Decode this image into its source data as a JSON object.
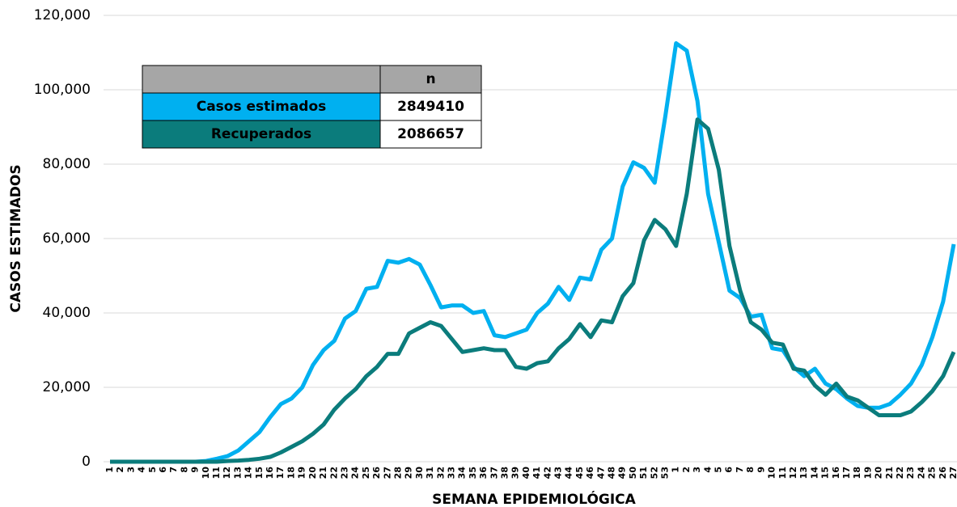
{
  "chart_data": {
    "type": "line",
    "x_label": "SEMANA EPIDEMIOLÓGICA",
    "y_label": "CASOS ESTIMADOS",
    "categories": [
      "1",
      "2",
      "3",
      "4",
      "5",
      "6",
      "7",
      "8",
      "9",
      "10",
      "11",
      "12",
      "13",
      "14",
      "15",
      "16",
      "17",
      "18",
      "19",
      "20",
      "21",
      "22",
      "23",
      "24",
      "25",
      "26",
      "27",
      "28",
      "29",
      "30",
      "31",
      "32",
      "33",
      "34",
      "35",
      "36",
      "37",
      "38",
      "39",
      "40",
      "41",
      "42",
      "43",
      "44",
      "45",
      "46",
      "47",
      "48",
      "49",
      "50",
      "51",
      "52",
      "53",
      "1",
      "2",
      "3",
      "4",
      "5",
      "6",
      "7",
      "8",
      "9",
      "10",
      "11",
      "12",
      "13",
      "14",
      "15",
      "16",
      "17",
      "18",
      "19",
      "20",
      "21",
      "22",
      "23",
      "24",
      "25",
      "26",
      "27"
    ],
    "series": [
      {
        "name": "Casos estimados",
        "color": "#00b0f0",
        "total": 2849410,
        "values": [
          0,
          0,
          0,
          0,
          0,
          0,
          0,
          0,
          0,
          200,
          800,
          1500,
          3000,
          5500,
          8000,
          12000,
          15500,
          17000,
          20000,
          26000,
          30000,
          32500,
          38500,
          40500,
          46500,
          47000,
          54000,
          53500,
          54500,
          53000,
          47500,
          41500,
          42000,
          42000,
          40000,
          40500,
          34000,
          33500,
          34500,
          35500,
          40000,
          42500,
          47000,
          43500,
          49500,
          49000,
          57000,
          60000,
          74000,
          80500,
          79000,
          75000,
          93000,
          112500,
          110500,
          97000,
          72000,
          59000,
          46000,
          44000,
          39000,
          39500,
          30500,
          30000,
          25500,
          23000,
          25000,
          21000,
          19500,
          17000,
          15000,
          14500,
          14500,
          15500,
          18000,
          21000,
          26000,
          33500,
          43000,
          58500
        ]
      },
      {
        "name": "Recuperados",
        "color": "#0b7c7c",
        "total": 2086657,
        "values": [
          0,
          0,
          0,
          0,
          0,
          0,
          0,
          0,
          0,
          0,
          0,
          200,
          300,
          500,
          800,
          1300,
          2500,
          4000,
          5500,
          7500,
          10000,
          14000,
          17000,
          19500,
          23000,
          25500,
          29000,
          29000,
          34500,
          36000,
          37500,
          36500,
          33000,
          29500,
          30000,
          30500,
          30000,
          30000,
          25500,
          25000,
          26500,
          27000,
          30500,
          33000,
          37000,
          33500,
          38000,
          37500,
          44500,
          48000,
          59500,
          65000,
          62500,
          58000,
          72000,
          92000,
          89500,
          78500,
          58000,
          46000,
          37500,
          35500,
          32000,
          31500,
          25000,
          24500,
          20500,
          18000,
          21000,
          17500,
          16500,
          14500,
          12500,
          12500,
          12500,
          13500,
          16000,
          19000,
          23000,
          29500
        ]
      }
    ],
    "totals_header": "n",
    "ylim": [
      0,
      120000
    ],
    "yticks": [
      0,
      {
        "value": 20000,
        "label": "20,000"
      },
      {
        "value": 40000,
        "label": "40,000"
      },
      {
        "value": 60000,
        "label": "60,000"
      },
      {
        "value": 80000,
        "label": "80,000"
      },
      {
        "value": 100000,
        "label": "100,000"
      },
      {
        "value": 120000,
        "label": "120,000"
      }
    ],
    "grid": true
  }
}
